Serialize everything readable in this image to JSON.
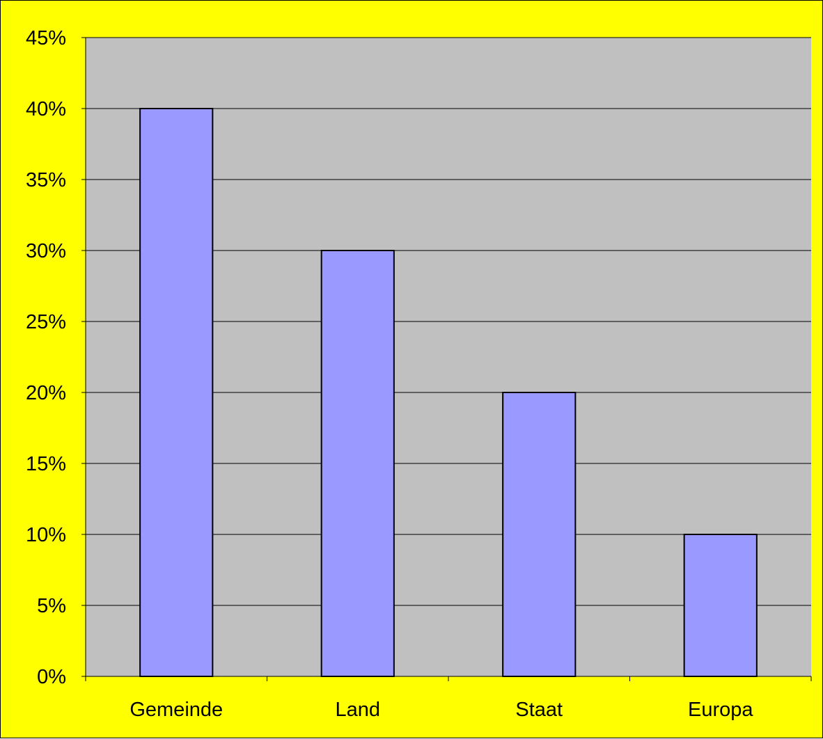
{
  "chart_data": {
    "type": "bar",
    "categories": [
      "Gemeinde",
      "Land",
      "Staat",
      "Europa"
    ],
    "values": [
      40,
      30,
      20,
      10
    ],
    "value_format": "percent",
    "ylim": [
      0,
      45
    ],
    "yticks": [
      0,
      5,
      10,
      15,
      20,
      25,
      30,
      35,
      40,
      45
    ],
    "ytick_labels": [
      "0%",
      "5%",
      "10%",
      "15%",
      "20%",
      "25%",
      "30%",
      "35%",
      "40%",
      "45%"
    ],
    "title": "",
    "xlabel": "",
    "ylabel": "",
    "grid": true,
    "legend": "none",
    "colors": {
      "background": "#ffff00",
      "plot_area": "#c0c0c0",
      "bar_fill": "#9999ff",
      "bar_stroke": "#000000",
      "gridline": "#000000"
    }
  }
}
